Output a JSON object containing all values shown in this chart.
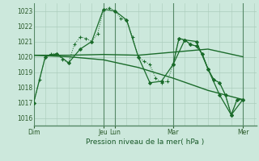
{
  "bg_color": "#cce8dc",
  "grid_color": "#aaccbb",
  "line_color": "#1a6b2a",
  "title": "Pression niveau de la mer( hPa )",
  "ylim": [
    1015.5,
    1023.5
  ],
  "yticks": [
    1016,
    1017,
    1018,
    1019,
    1020,
    1021,
    1022,
    1023
  ],
  "x_day_labels": [
    "Dim",
    "Jeu",
    "Lun",
    "Mar",
    "Mer"
  ],
  "x_day_positions": [
    0,
    72,
    84,
    144,
    216
  ],
  "xlim": [
    0,
    230
  ],
  "series": [
    {
      "x": [
        0,
        6,
        12,
        18,
        24,
        30,
        36,
        42,
        48,
        54,
        60,
        66,
        72,
        78,
        84,
        90,
        96,
        102,
        108,
        114,
        120,
        126,
        132,
        138,
        144,
        150,
        156,
        162,
        168,
        174,
        180,
        186,
        192,
        198,
        204,
        210,
        216
      ],
      "y": [
        1017.0,
        1018.5,
        1020.0,
        1020.2,
        1020.2,
        1019.8,
        1019.6,
        1020.8,
        1021.3,
        1021.2,
        1021.0,
        1021.5,
        1023.1,
        1023.2,
        1023.0,
        1022.5,
        1022.4,
        1021.3,
        1020.0,
        1019.7,
        1019.5,
        1018.6,
        1018.3,
        1018.4,
        1019.5,
        1021.2,
        1021.1,
        1020.8,
        1020.7,
        1020.2,
        1019.2,
        1018.5,
        1018.3,
        1017.5,
        1016.2,
        1017.2,
        1017.2
      ],
      "style": "dotted",
      "marker": "+"
    },
    {
      "x": [
        0,
        12,
        24,
        36,
        48,
        60,
        72,
        84,
        96,
        108,
        120,
        132,
        144,
        156,
        168,
        180,
        192,
        204,
        216
      ],
      "y": [
        1017.0,
        1020.0,
        1020.2,
        1019.6,
        1020.5,
        1021.0,
        1023.1,
        1023.0,
        1022.4,
        1020.0,
        1018.3,
        1018.4,
        1019.5,
        1021.1,
        1021.0,
        1019.2,
        1017.5,
        1016.2,
        1017.2
      ],
      "style": "solid",
      "marker": "D"
    },
    {
      "x": [
        0,
        36,
        72,
        108,
        144,
        180,
        216
      ],
      "y": [
        1020.1,
        1020.1,
        1020.15,
        1020.1,
        1020.3,
        1020.5,
        1020.0
      ],
      "style": "solid",
      "marker": null
    },
    {
      "x": [
        0,
        36,
        72,
        108,
        144,
        180,
        216
      ],
      "y": [
        1020.1,
        1020.0,
        1019.8,
        1019.3,
        1018.6,
        1017.8,
        1017.2
      ],
      "style": "solid",
      "marker": null
    },
    {
      "x": [
        144,
        150,
        156,
        162,
        168,
        174,
        180,
        186,
        192,
        198,
        204,
        210,
        216
      ],
      "y": [
        1019.5,
        1021.2,
        1021.1,
        1020.8,
        1020.7,
        1020.2,
        1019.2,
        1018.5,
        1018.3,
        1017.5,
        1016.2,
        1017.2,
        1017.2
      ],
      "style": "solid",
      "marker": "D"
    }
  ]
}
